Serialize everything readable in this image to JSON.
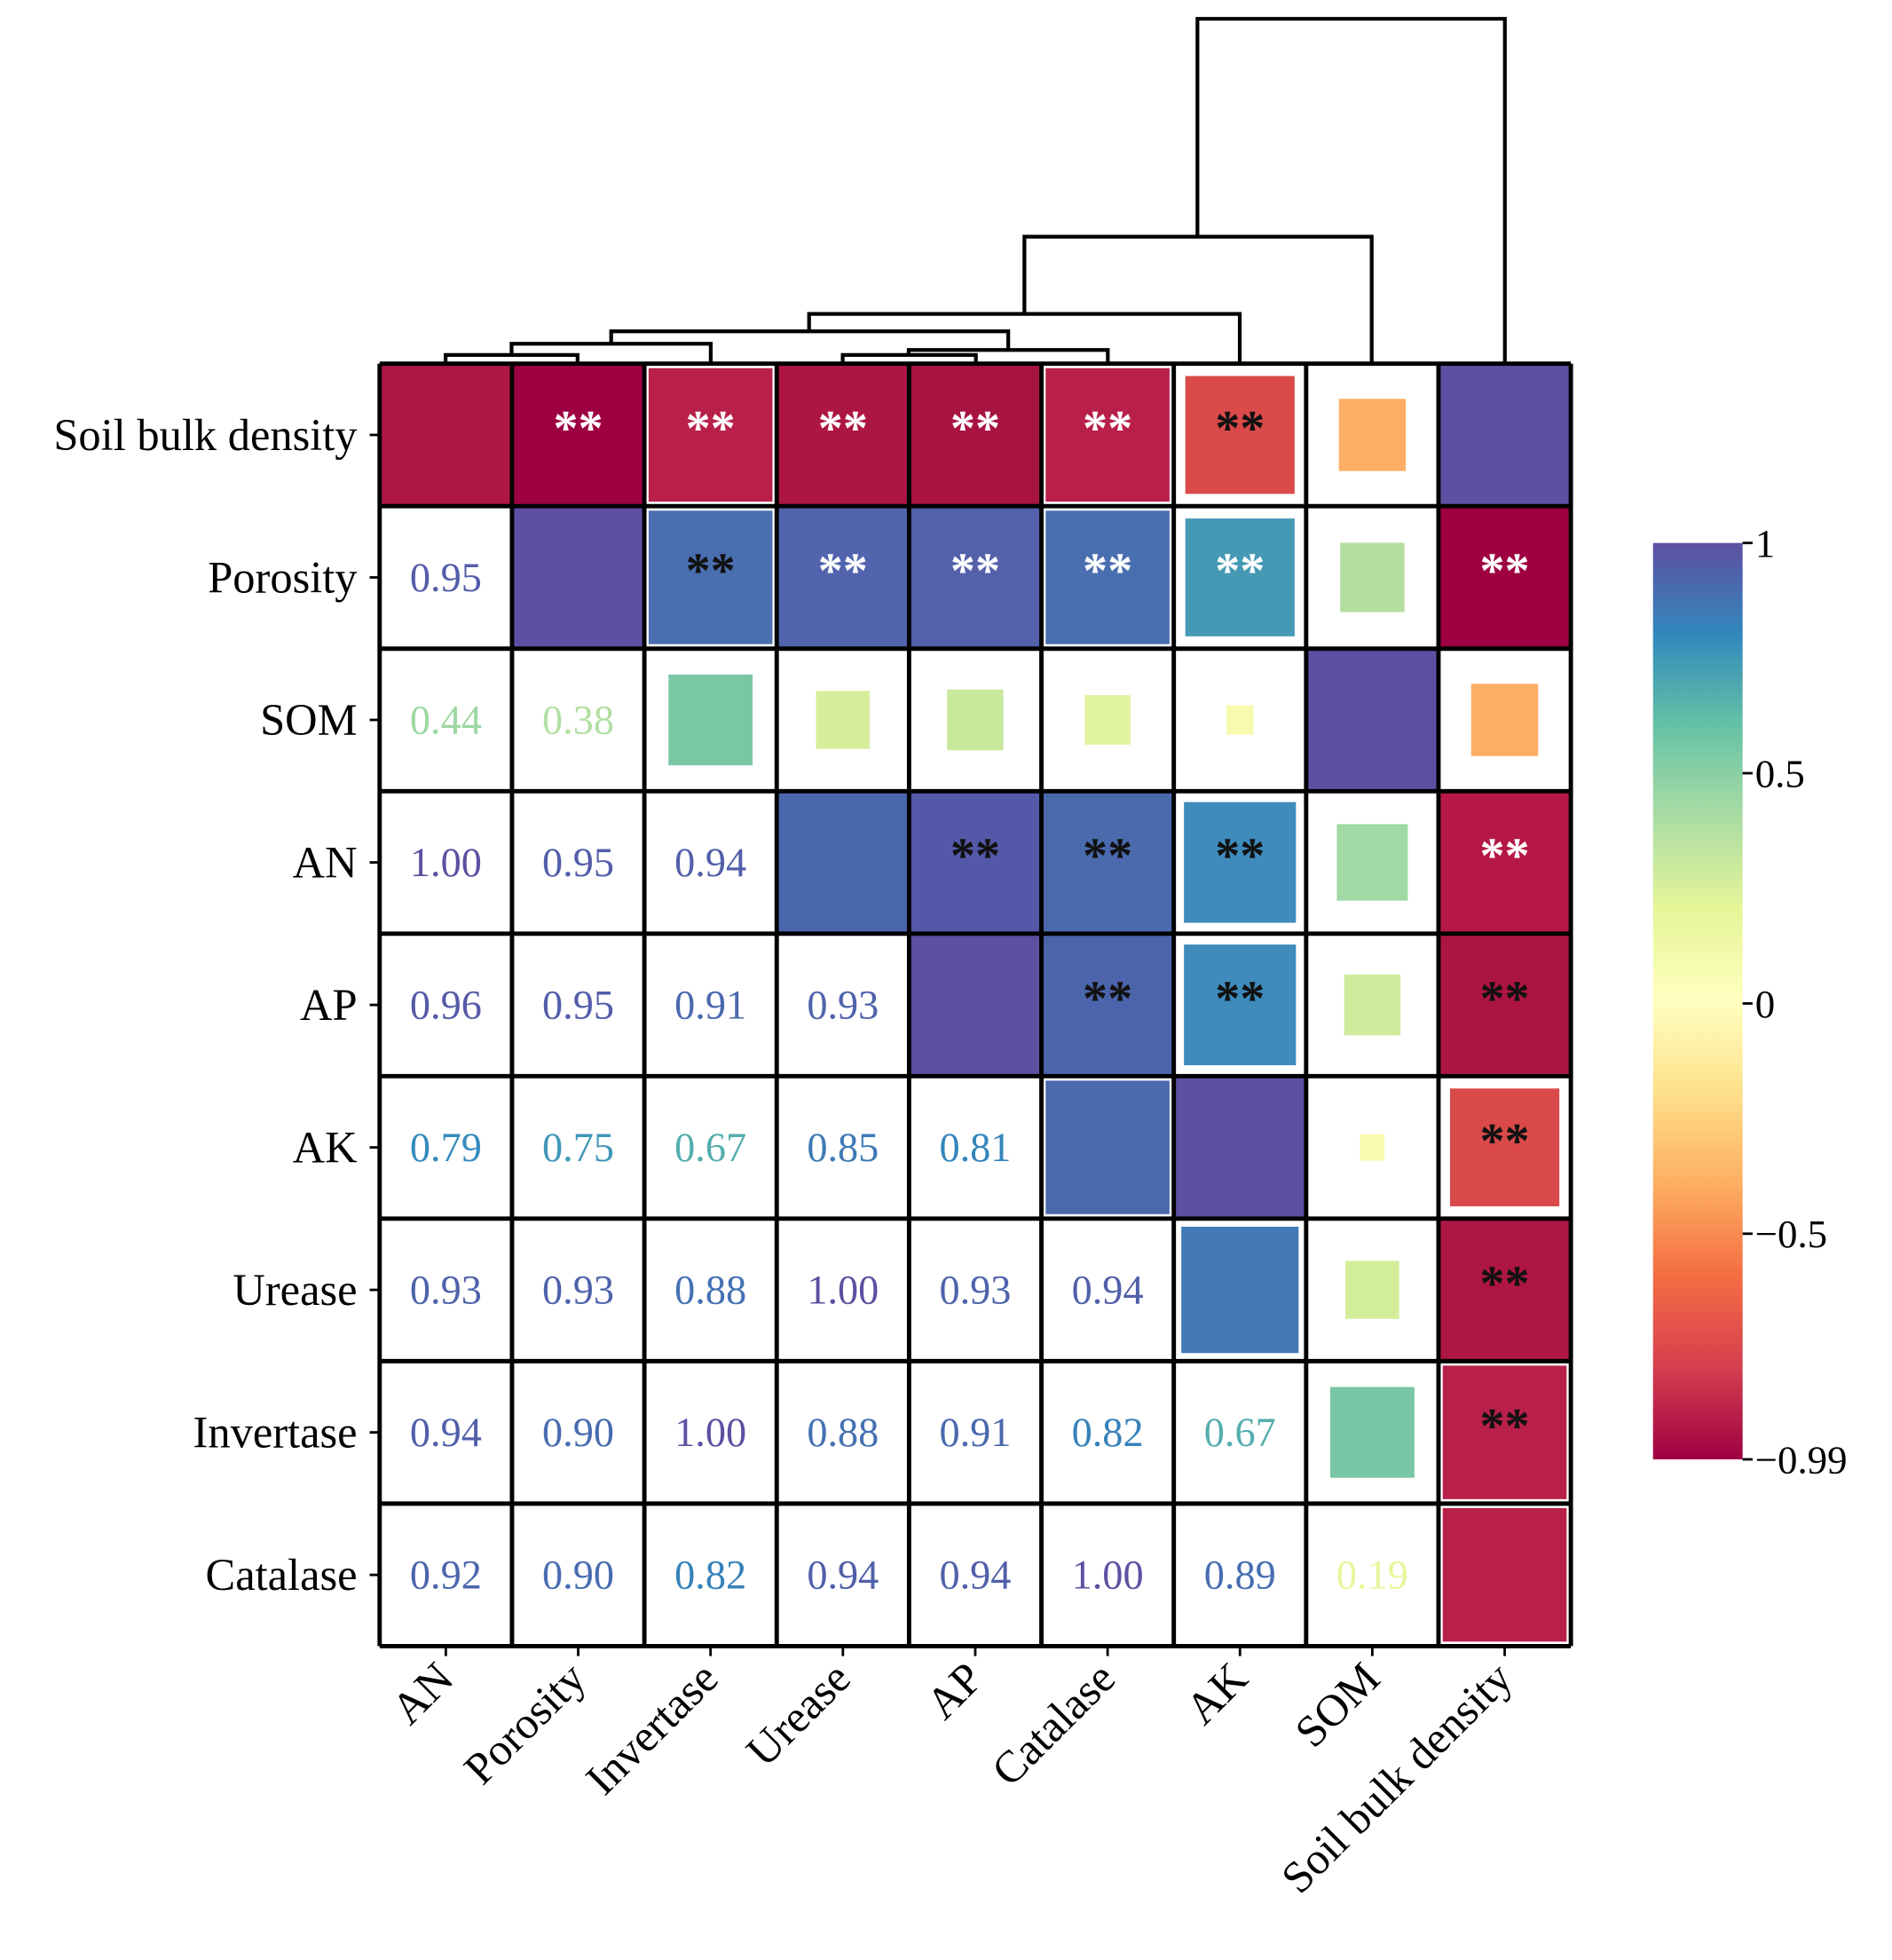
{
  "chart_data": {
    "type": "heatmap",
    "title": "",
    "row_labels": [
      "Soil bulk density",
      "Porosity",
      "SOM",
      "AN",
      "AP",
      "AK",
      "Urease",
      "Invertase",
      "Catalase"
    ],
    "col_labels": [
      "AN",
      "Porosity",
      "Invertase",
      "Urease",
      "AP",
      "Catalase",
      "AK",
      "SOM",
      "Soil bulk density"
    ],
    "colorbar": {
      "min": -0.99,
      "max": 1,
      "ticks": [
        "1",
        "0.5",
        "0",
        "−0.5",
        "−0.99"
      ],
      "tick_values": [
        1,
        0.5,
        0,
        -0.5,
        -0.99
      ],
      "colormap": "Spectral"
    },
    "cells": [
      [
        {
          "sq": 1,
          "c": "#ae1743"
        },
        {
          "sq": 1,
          "c": "#9e0142",
          "s": "**",
          "sc": "#fff"
        },
        {
          "sq": 0.95,
          "c": "#b8204a",
          "s": "**",
          "sc": "#fff"
        },
        {
          "sq": 1,
          "c": "#ad1643",
          "s": "**",
          "sc": "#fff"
        },
        {
          "sq": 1,
          "c": "#a81342",
          "s": "**",
          "sc": "#fff"
        },
        {
          "sq": 0.95,
          "c": "#b8204a",
          "s": "**",
          "sc": "#fff"
        },
        {
          "sq": 0.84,
          "c": "#da4a4a",
          "s": "**",
          "sc": "#111"
        },
        {
          "sq": 0.52,
          "c": "#fdae65"
        },
        {
          "sq": 1,
          "c": "#5e4fa2"
        }
      ],
      [
        {
          "v": "0.95",
          "n": 0.95
        },
        {
          "sq": 1,
          "c": "#5f4fa2"
        },
        {
          "sq": 0.95,
          "c": "#4a6fb0",
          "s": "**",
          "sc": "#111"
        },
        {
          "sq": 1,
          "c": "#5164ad",
          "s": "**",
          "sc": "#fff"
        },
        {
          "sq": 1,
          "c": "#5360aa",
          "s": "**",
          "sc": "#fff"
        },
        {
          "sq": 0.95,
          "c": "#4a6fb0",
          "s": "**",
          "sc": "#fff"
        },
        {
          "sq": 0.84,
          "c": "#4699b4",
          "s": "**",
          "sc": "#fff"
        },
        {
          "sq": 0.5,
          "c": "#b3dea0"
        },
        {
          "sq": 1,
          "c": "#9e0142",
          "s": "**",
          "sc": "#fff"
        }
      ],
      [
        {
          "v": "0.44",
          "n": 0.44
        },
        {
          "v": "0.38",
          "n": 0.38
        },
        {
          "sq": 0.65,
          "c": "#7ac7a5"
        },
        {
          "sq": 0.42,
          "c": "#d6ee9b"
        },
        {
          "sq": 0.44,
          "c": "#c8e99c"
        },
        {
          "sq": 0.36,
          "c": "#e2f3a0"
        },
        {
          "sq": 0.22,
          "c": "#f8fab0"
        },
        {
          "sq": 1,
          "c": "#5e4fa2"
        },
        {
          "sq": 0.52,
          "c": "#fdae65"
        }
      ],
      [
        {
          "v": "1.00",
          "n": 1.0
        },
        {
          "v": "0.95",
          "n": 0.95
        },
        {
          "v": "0.94",
          "n": 0.94
        },
        {
          "sq": 1,
          "c": "#4a67ad"
        },
        {
          "sq": 1,
          "c": "#5359a8",
          "s": "**",
          "sc": "#111"
        },
        {
          "sq": 1,
          "c": "#4a6aad",
          "s": "**",
          "sc": "#111"
        },
        {
          "sq": 0.86,
          "c": "#3f8bbc",
          "s": "**",
          "sc": "#111"
        },
        {
          "sq": 0.55,
          "c": "#a0d9a4"
        },
        {
          "sq": 1,
          "c": "#b51846",
          "s": "**",
          "sc": "#fff"
        }
      ],
      [
        {
          "v": "0.96",
          "n": 0.96
        },
        {
          "v": "0.95",
          "n": 0.95
        },
        {
          "v": "0.91",
          "n": 0.91
        },
        {
          "v": "0.93",
          "n": 0.93
        },
        {
          "sq": 1,
          "c": "#5e4fa2"
        },
        {
          "sq": 1,
          "c": "#4c64ab",
          "s": "**",
          "sc": "#111"
        },
        {
          "sq": 0.86,
          "c": "#3e8bbc",
          "s": "**",
          "sc": "#111"
        },
        {
          "sq": 0.44,
          "c": "#cfec9c"
        },
        {
          "sq": 1,
          "c": "#ac1543",
          "s": "**",
          "sc": "#111"
        }
      ],
      [
        {
          "v": "0.79",
          "n": 0.79
        },
        {
          "v": "0.75",
          "n": 0.75
        },
        {
          "v": "0.67",
          "n": 0.67
        },
        {
          "v": "0.85",
          "n": 0.85
        },
        {
          "v": "0.81",
          "n": 0.81
        },
        {
          "sq": 0.95,
          "c": "#4a6aad"
        },
        {
          "sq": 1,
          "c": "#5e4fa2"
        },
        {
          "sq": 0.2,
          "c": "#fafbb0"
        },
        {
          "sq": 0.84,
          "c": "#da4a4a",
          "s": "**",
          "sc": "#111"
        }
      ],
      [
        {
          "v": "0.93",
          "n": 0.93
        },
        {
          "v": "0.93",
          "n": 0.93
        },
        {
          "v": "0.88",
          "n": 0.88
        },
        {
          "v": "1.00",
          "n": 1.0
        },
        {
          "v": "0.93",
          "n": 0.93
        },
        {
          "v": "0.94",
          "n": 0.94
        },
        {
          "sq": 0.9,
          "c": "#4379b4"
        },
        {
          "sq": 0.42,
          "c": "#d3ee9b"
        },
        {
          "sq": 1,
          "c": "#ae1643",
          "s": "**",
          "sc": "#111"
        }
      ],
      [
        {
          "v": "0.94",
          "n": 0.94
        },
        {
          "v": "0.90",
          "n": 0.9
        },
        {
          "v": "1.00",
          "n": 1.0
        },
        {
          "v": "0.88",
          "n": 0.88
        },
        {
          "v": "0.91",
          "n": 0.91
        },
        {
          "v": "0.82",
          "n": 0.82
        },
        {
          "v": "0.67",
          "n": 0.67
        },
        {
          "sq": 0.65,
          "c": "#78c6a6"
        },
        {
          "sq": 0.95,
          "c": "#b8204a",
          "s": "**",
          "sc": "#111"
        }
      ],
      [
        {
          "v": "0.92",
          "n": 0.92
        },
        {
          "v": "0.90",
          "n": 0.9
        },
        {
          "v": "0.82",
          "n": 0.82
        },
        {
          "v": "0.94",
          "n": 0.94
        },
        {
          "v": "0.94",
          "n": 0.94
        },
        {
          "v": "1.00",
          "n": 1.0
        },
        {
          "v": "0.89",
          "n": 0.89
        },
        {
          "v": "0.19",
          "n": 0.19
        },
        {
          "sq": 0.95,
          "c": "#b8204a"
        }
      ]
    ]
  }
}
